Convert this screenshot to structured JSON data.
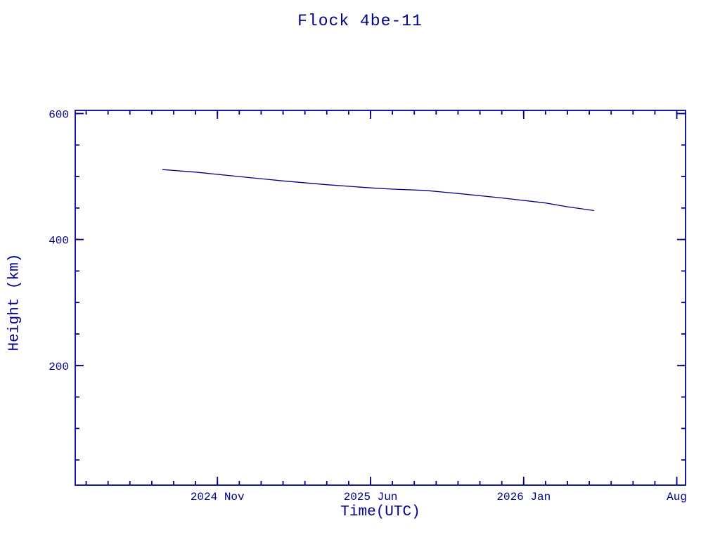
{
  "page": {
    "title": "Flock 4be-11"
  },
  "colors": {
    "accent": "#00008B",
    "background": "#ffffff"
  },
  "chart_data": {
    "type": "line",
    "title": "Flock 4be-11",
    "xlabel": "Time(UTC)",
    "ylabel": "Height (km)",
    "x_unit": "months since 2024-01 (0 = Jan 2024)",
    "xlim": [
      3.5,
      31.4
    ],
    "ylim": [
      10,
      605
    ],
    "grid": false,
    "legend": false,
    "x_major_ticks": [
      {
        "t": 10,
        "label": "2024 Nov"
      },
      {
        "t": 17,
        "label": "2025 Jun"
      },
      {
        "t": 24,
        "label": "2026 Jan"
      },
      {
        "t": 31,
        "label": "Aug"
      }
    ],
    "x_minor_step": 1,
    "y_major_ticks": [
      {
        "v": 200,
        "label": "200"
      },
      {
        "v": 400,
        "label": "400"
      },
      {
        "v": 600,
        "label": "600"
      }
    ],
    "y_minor_step": 50,
    "series": [
      {
        "name": "height-km",
        "points": [
          [
            7.5,
            511
          ],
          [
            9.0,
            507
          ],
          [
            11.0,
            500
          ],
          [
            13.0,
            493
          ],
          [
            15.0,
            487
          ],
          [
            17.0,
            482
          ],
          [
            18.0,
            480
          ],
          [
            19.5,
            478
          ],
          [
            21.0,
            473
          ],
          [
            23.0,
            466
          ],
          [
            25.0,
            458
          ],
          [
            26.0,
            452
          ],
          [
            27.2,
            446
          ]
        ]
      }
    ]
  }
}
